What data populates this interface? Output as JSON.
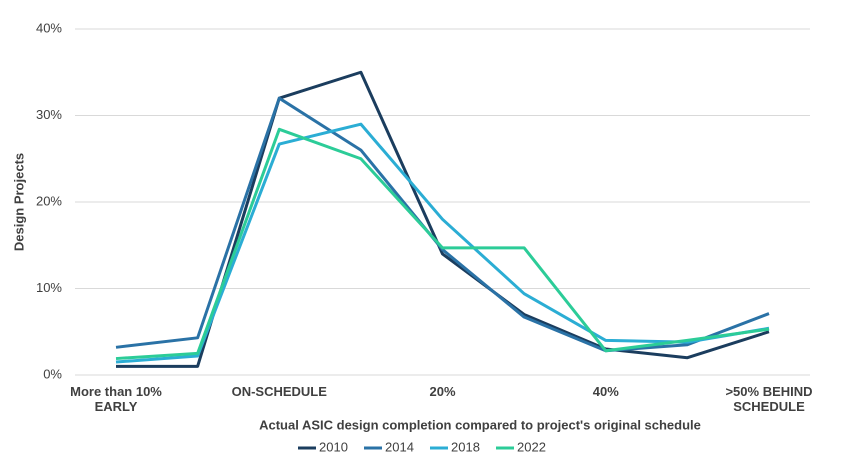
{
  "chart_data": {
    "type": "line",
    "categories": [
      "More than 10% EARLY",
      null,
      "ON-SCHEDULE",
      null,
      "20%",
      null,
      "40%",
      null,
      ">50% BEHIND SCHEDULE"
    ],
    "series": [
      {
        "name": "2010",
        "color": "#1b3d5e",
        "values": [
          1,
          1,
          32,
          35,
          14,
          7,
          3,
          2,
          5
        ]
      },
      {
        "name": "2014",
        "color": "#2a72a6",
        "values": [
          3.2,
          4.3,
          32,
          26,
          14.5,
          6.7,
          2.8,
          3.5,
          7.1
        ]
      },
      {
        "name": "2018",
        "color": "#2badd4",
        "values": [
          1.5,
          2.2,
          26.7,
          29,
          18,
          9.4,
          4,
          3.8,
          5.4
        ]
      },
      {
        "name": "2022",
        "color": "#2ccc98",
        "values": [
          1.9,
          2.5,
          28.4,
          25,
          14.7,
          14.7,
          2.8,
          4,
          5.3
        ]
      }
    ],
    "ylim": [
      0,
      40
    ],
    "yticks": [
      {
        "value": 0,
        "label": "0%"
      },
      {
        "value": 10,
        "label": "10%"
      },
      {
        "value": 20,
        "label": "20%"
      },
      {
        "value": 30,
        "label": "30%"
      },
      {
        "value": 40,
        "label": "40%"
      }
    ],
    "x_label": "Actual ASIC design completion compared to project's original schedule",
    "y_label": "Design Projects",
    "grid": true,
    "legend": "bottom"
  }
}
